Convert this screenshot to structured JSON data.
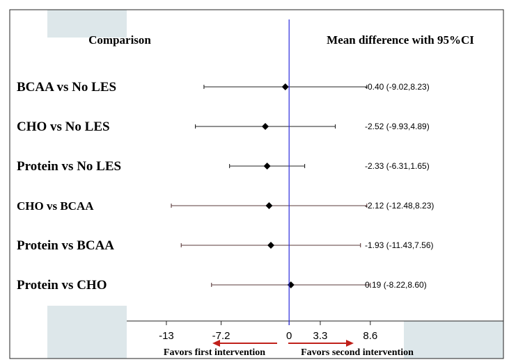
{
  "chart_data": {
    "type": "forest",
    "column_headers": {
      "left": "Comparison",
      "right": "Mean difference with 95%CI"
    },
    "rows": [
      {
        "label": "BCAA vs No LES",
        "mean": -0.4,
        "lower": -9.02,
        "upper": 8.23,
        "text": "-0.40 (-9.02,8.23)"
      },
      {
        "label": "CHO vs No LES",
        "mean": -2.52,
        "lower": -9.93,
        "upper": 4.89,
        "text": "-2.52 (-9.93,4.89)"
      },
      {
        "label": "Protein vs No LES",
        "mean": -2.33,
        "lower": -6.31,
        "upper": 1.65,
        "text": "-2.33 (-6.31,1.65)"
      },
      {
        "label": "CHO vs BCAA",
        "mean": -2.12,
        "lower": -12.48,
        "upper": 8.23,
        "text": "-2.12 (-12.48,8.23)"
      },
      {
        "label": "Protein vs BCAA",
        "mean": -1.93,
        "lower": -11.43,
        "upper": 7.56,
        "text": "-1.93 (-11.43,7.56)"
      },
      {
        "label": "Protein vs CHO",
        "mean": 0.19,
        "lower": -8.22,
        "upper": 8.6,
        "text": "0.19 (-8.22,8.60)"
      }
    ],
    "x_ticks": [
      {
        "value": -13,
        "label": "-13"
      },
      {
        "value": -7.2,
        "label": "-7.2"
      },
      {
        "value": 0,
        "label": "0"
      },
      {
        "value": 3.3,
        "label": "3.3"
      },
      {
        "value": 8.6,
        "label": "8.6"
      }
    ],
    "xlim": [
      -17.2,
      22.7
    ],
    "reference_line": 0,
    "direction_labels": {
      "left": "Favors first intervention",
      "right": "Favors second intervention"
    },
    "colors": {
      "reference_line": "#2b2bdc",
      "arrow": "#c0201a",
      "ci_upper_rows": "#222222",
      "ci_lower_rows": "#5a3a3a",
      "panel_bg": "#dde7ea",
      "marker": "#000000"
    },
    "grid": false
  }
}
